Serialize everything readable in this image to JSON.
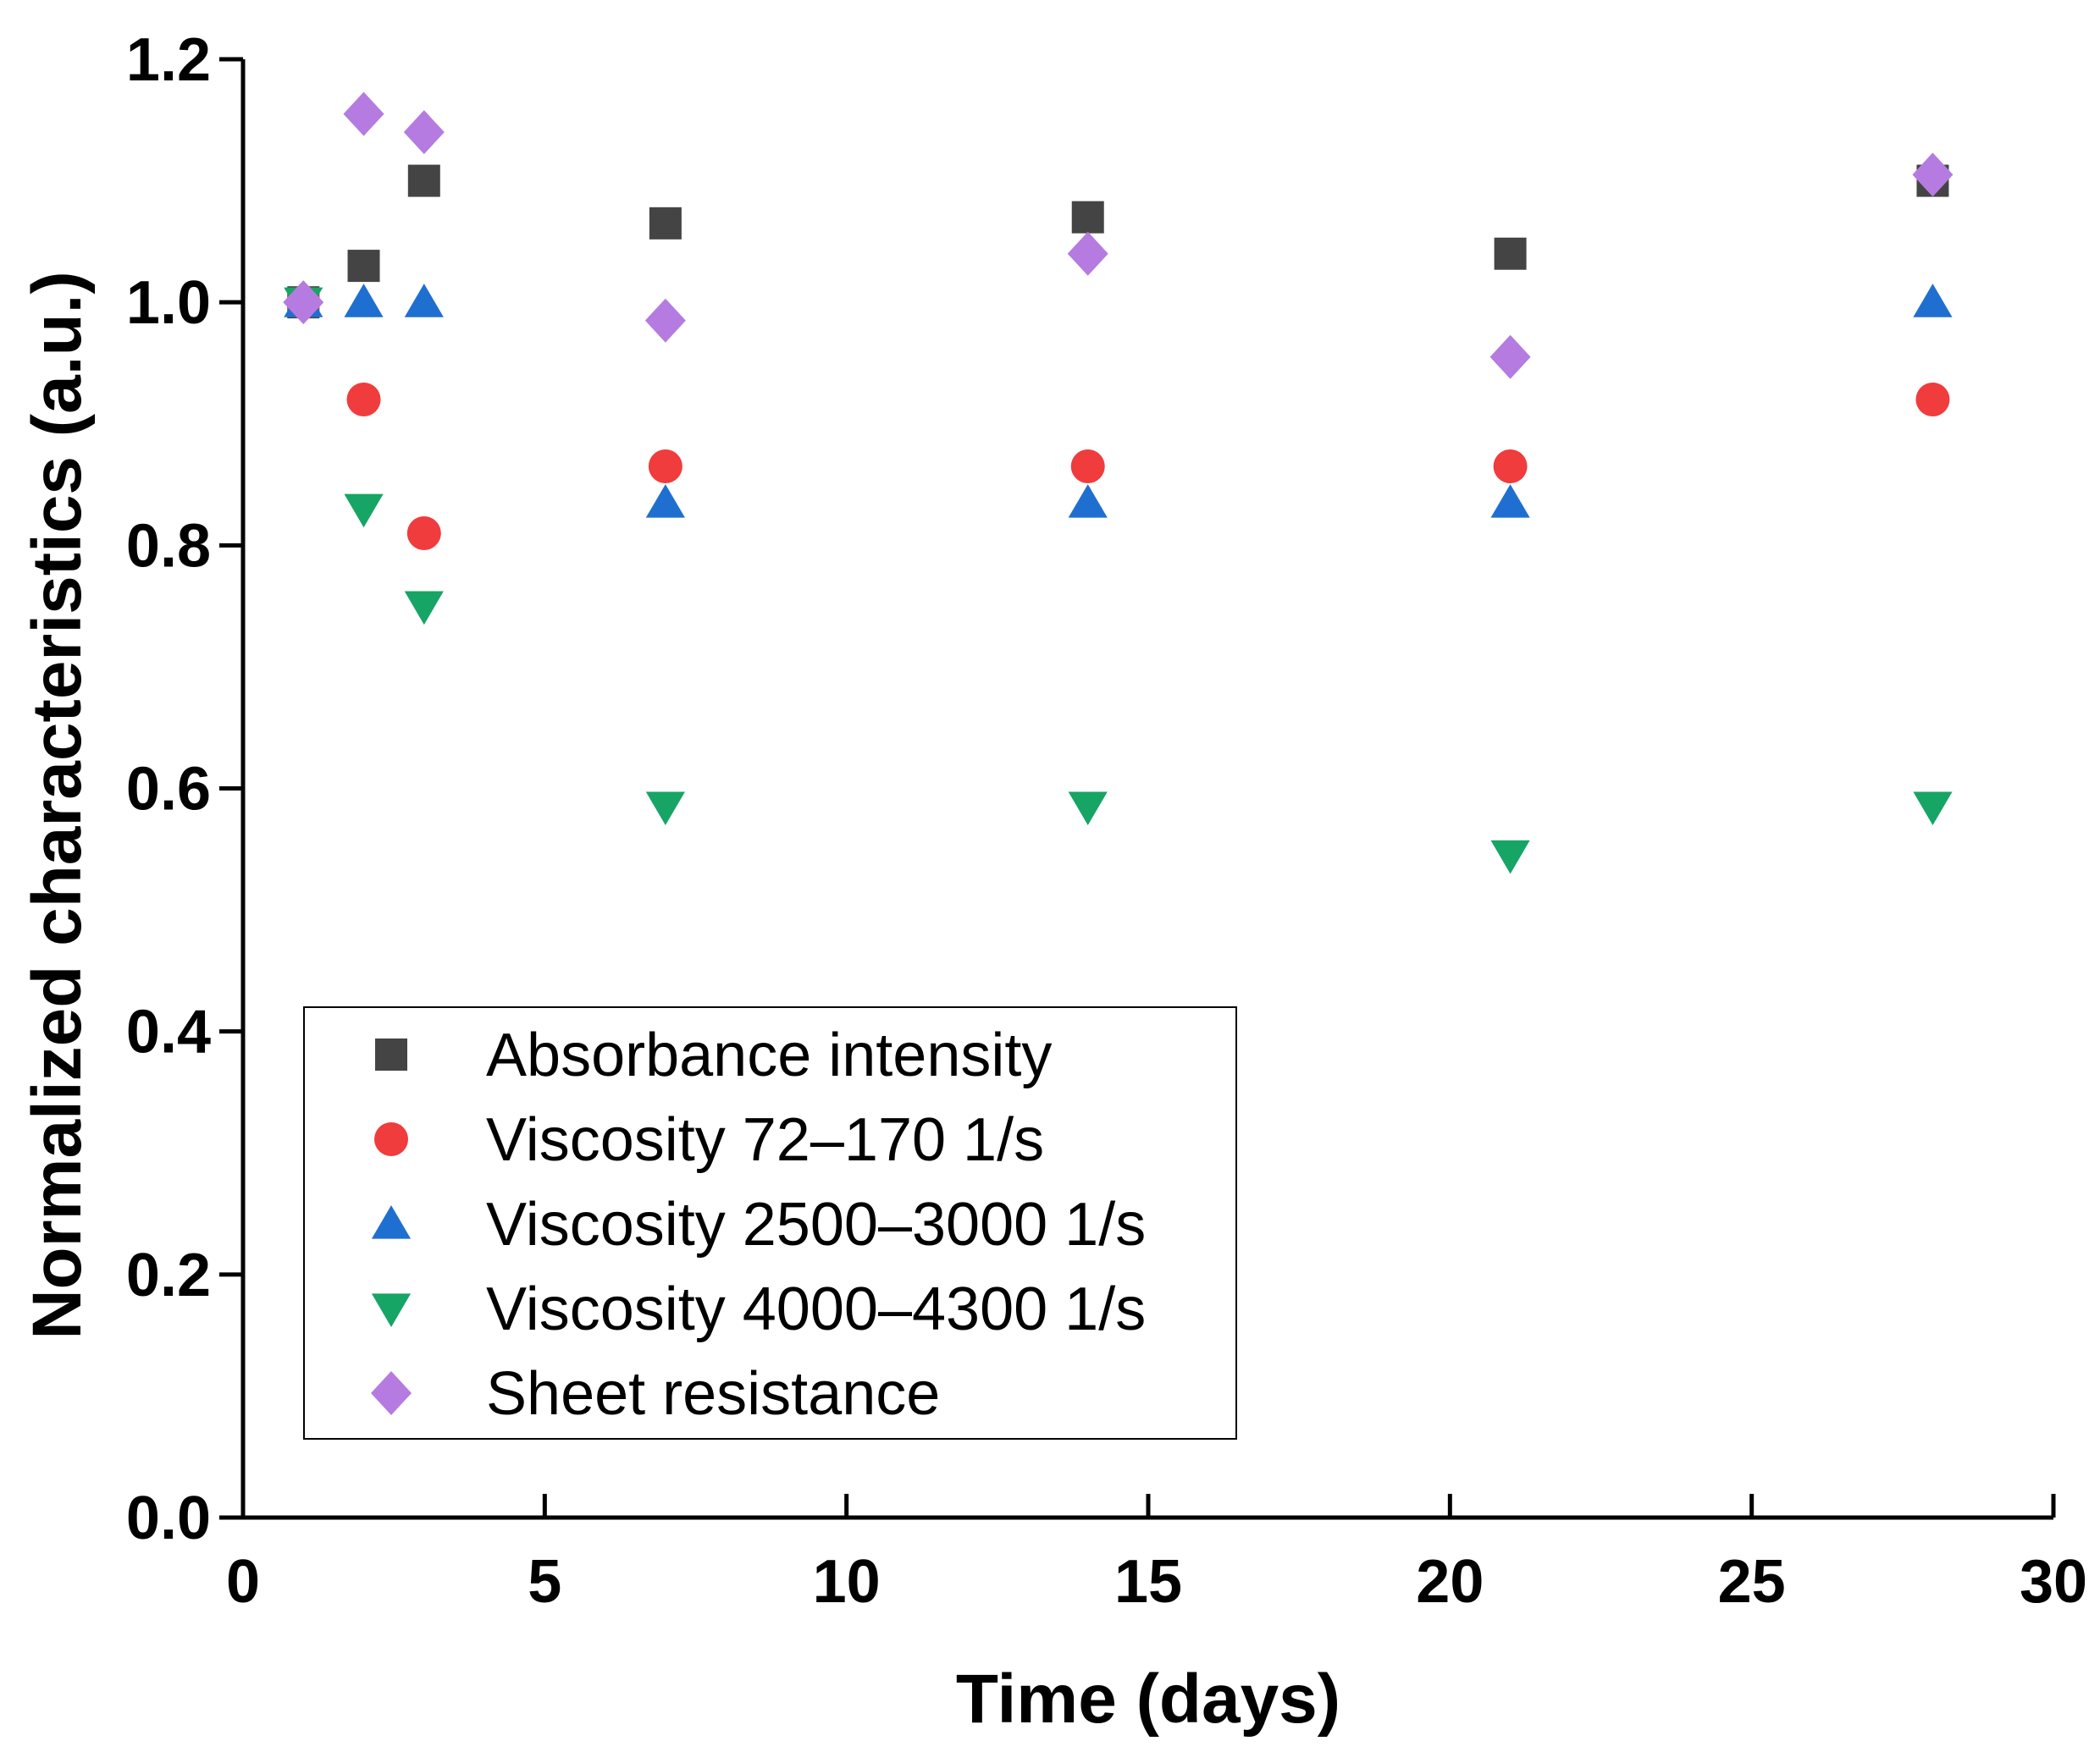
{
  "chart_data": {
    "type": "scatter",
    "title": "",
    "xlabel": "Time (days)",
    "ylabel": "Normalized characteristics (a.u.)",
    "xlim": [
      0,
      30
    ],
    "ylim": [
      0,
      1.2
    ],
    "xticks": [
      0,
      5,
      10,
      15,
      20,
      25,
      30
    ],
    "yticks": [
      0.0,
      0.2,
      0.4,
      0.6,
      0.8,
      1.0,
      1.2
    ],
    "xtick_labels": [
      "0",
      "5",
      "10",
      "15",
      "20",
      "25",
      "30"
    ],
    "ytick_labels": [
      "0.0",
      "0.2",
      "0.4",
      "0.6",
      "0.8",
      "1.0",
      "1.2"
    ],
    "grid": false,
    "legend_position": "lower-left",
    "series": [
      {
        "name": "Absorbance intensity",
        "marker": "square",
        "color": "#444444",
        "x": [
          1,
          2,
          3,
          7,
          14,
          21,
          28
        ],
        "y": [
          1.0,
          1.03,
          1.1,
          1.065,
          1.07,
          1.04,
          1.1
        ]
      },
      {
        "name": "Viscosity 72–170 1/s",
        "marker": "circle",
        "color": "#f03c3c",
        "x": [
          1,
          2,
          3,
          7,
          14,
          21,
          28
        ],
        "y": [
          1.0,
          0.92,
          0.81,
          0.865,
          0.865,
          0.865,
          0.92
        ]
      },
      {
        "name": "Viscosity 2500–3000 1/s",
        "marker": "triangle-up",
        "color": "#1f6fd1",
        "x": [
          1,
          2,
          3,
          7,
          14,
          21,
          28
        ],
        "y": [
          1.0,
          1.0,
          1.0,
          0.835,
          0.835,
          0.835,
          1.0
        ]
      },
      {
        "name": "Viscosity 4000–4300 1/s",
        "marker": "triangle-down",
        "color": "#16a564",
        "x": [
          1,
          2,
          3,
          7,
          14,
          21,
          28
        ],
        "y": [
          1.0,
          0.83,
          0.75,
          0.585,
          0.585,
          0.545,
          0.585
        ]
      },
      {
        "name": "Sheet resistance",
        "marker": "diamond",
        "color": "#b57be0",
        "x": [
          1,
          2,
          3,
          7,
          14,
          21,
          28
        ],
        "y": [
          1.0,
          1.155,
          1.14,
          0.985,
          1.04,
          0.955,
          1.105
        ]
      }
    ]
  }
}
